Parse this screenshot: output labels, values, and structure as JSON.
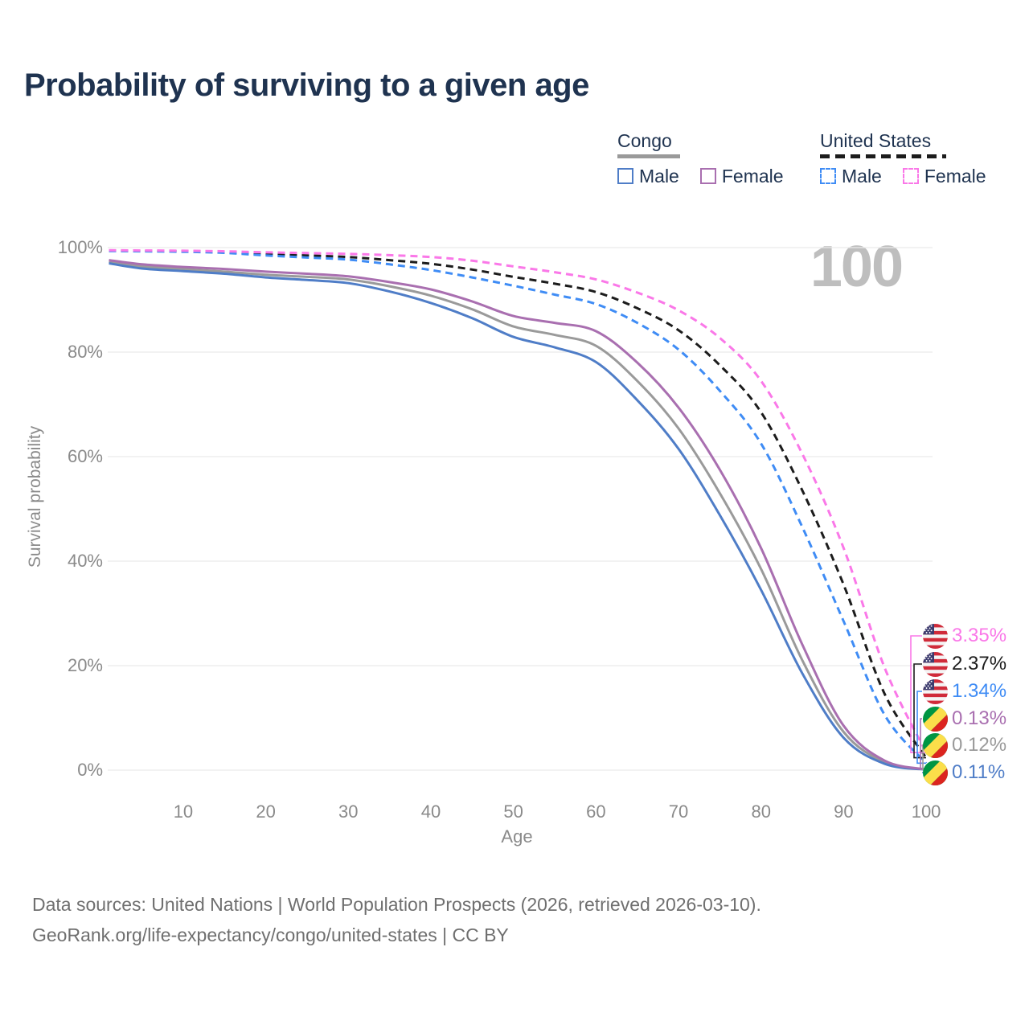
{
  "title": "Probability of surviving to a given age",
  "legend": {
    "congo": {
      "label": "Congo",
      "male": "Male",
      "female": "Female"
    },
    "us": {
      "label": "United States",
      "male": "Male",
      "female": "Female"
    }
  },
  "colors": {
    "congo_male": "#4F7DC7",
    "congo_female": "#A96FB0",
    "congo_overall": "#9A9A9A",
    "us_male": "#3F8CF5",
    "us_female": "#FA78E8",
    "us_overall": "#1C1C1C",
    "title_text": "#1F3350",
    "axis_text": "#8A8A8A",
    "gridline": "#EBEBEB",
    "watermark": "#BEBEBE",
    "footer_text": "#6F6F6F"
  },
  "icons": [
    "us-flag-icon",
    "congo-flag-icon"
  ],
  "end_labels": [
    {
      "flag": "us-flag",
      "series": "United States Female",
      "text": "3.35%",
      "value_pct": 3.35,
      "color": "#FA78E8"
    },
    {
      "flag": "us-flag",
      "series": "United States (both sexes)",
      "text": "2.37%",
      "value_pct": 2.37,
      "color": "#1C1C1C"
    },
    {
      "flag": "us-flag",
      "series": "United States Male",
      "text": "1.34%",
      "value_pct": 1.34,
      "color": "#3F8CF5"
    },
    {
      "flag": "congo-flag",
      "series": "Congo Female",
      "text": "0.13%",
      "value_pct": 0.13,
      "color": "#A96FB0"
    },
    {
      "flag": "congo-flag",
      "series": "Congo (both sexes)",
      "text": "0.12%",
      "value_pct": 0.12,
      "color": "#9A9A9A"
    },
    {
      "flag": "congo-flag",
      "series": "Congo Male",
      "text": "0.11%",
      "value_pct": 0.11,
      "color": "#4F7DC7"
    }
  ],
  "footer": {
    "line1": "Data sources: United Nations | World Population Prospects (2026, retrieved 2026-03-10).",
    "line2": "GeoRank.org/life-expectancy/congo/united-states | CC BY"
  },
  "chart_data": {
    "type": "line",
    "title": "Probability of surviving to a given age",
    "xlabel": "Age",
    "ylabel": "Survival probability",
    "highlighted_age": "100",
    "x_range": [
      1,
      100
    ],
    "y_range_pct": [
      0,
      100
    ],
    "grid": "horizontal-only",
    "legend_position": "top-right",
    "x_ticks": [
      10,
      20,
      30,
      40,
      50,
      60,
      70,
      80,
      90,
      100
    ],
    "y_ticks": [
      0,
      20,
      40,
      60,
      80,
      100
    ],
    "y_tick_labels": [
      "0%",
      "20%",
      "40%",
      "60%",
      "80%",
      "100%"
    ],
    "x": [
      1,
      5,
      10,
      15,
      20,
      25,
      30,
      35,
      40,
      45,
      50,
      55,
      60,
      65,
      70,
      75,
      80,
      85,
      90,
      95,
      100
    ],
    "series": [
      {
        "id": "congo-overall",
        "name": "Congo (both sexes)",
        "country": "Congo",
        "sex": "Both",
        "style": "solid",
        "color": "#9A9A9A",
        "value_at_age_100_pct": 0.12,
        "values": [
          97.3,
          96.4,
          95.9,
          95.4,
          94.8,
          94.4,
          93.9,
          92.6,
          90.8,
          88.2,
          84.9,
          83.3,
          81.2,
          74.5,
          65.4,
          53.0,
          38.5,
          21.0,
          7.3,
          1.5,
          0.12
        ]
      },
      {
        "id": "congo-male",
        "name": "Congo Male",
        "country": "Congo",
        "sex": "Male",
        "style": "solid",
        "color": "#4F7DC7",
        "value_at_age_100_pct": 0.11,
        "values": [
          97.0,
          96.0,
          95.5,
          95.0,
          94.3,
          93.8,
          93.2,
          91.6,
          89.4,
          86.5,
          82.9,
          80.9,
          78.1,
          70.8,
          61.5,
          48.8,
          34.5,
          18.5,
          6.2,
          1.2,
          0.11
        ]
      },
      {
        "id": "congo-female",
        "name": "Congo Female",
        "country": "Congo",
        "sex": "Female",
        "style": "solid",
        "color": "#A96FB0",
        "value_at_age_100_pct": 0.13,
        "values": [
          97.6,
          96.8,
          96.3,
          95.9,
          95.4,
          95.0,
          94.5,
          93.4,
          92.0,
          89.7,
          86.9,
          85.6,
          84.0,
          78.0,
          69.4,
          57.5,
          42.5,
          24.0,
          8.5,
          1.8,
          0.13
        ]
      },
      {
        "id": "us-overall",
        "name": "United States (both sexes)",
        "country": "United States",
        "sex": "Both",
        "style": "dashed",
        "color": "#1C1C1C",
        "value_at_age_100_pct": 2.37,
        "values": [
          99.4,
          99.35,
          99.3,
          99.15,
          98.8,
          98.5,
          98.2,
          97.6,
          96.9,
          95.8,
          94.4,
          93.1,
          91.5,
          88.4,
          84.2,
          77.5,
          68.5,
          53.5,
          35.5,
          14.5,
          2.37
        ]
      },
      {
        "id": "us-male",
        "name": "United States Male",
        "country": "United States",
        "sex": "Male",
        "style": "dashed",
        "color": "#3F8CF5",
        "value_at_age_100_pct": 1.34,
        "values": [
          99.35,
          99.3,
          99.2,
          99.0,
          98.5,
          98.1,
          97.7,
          96.8,
          95.7,
          94.3,
          92.7,
          91.0,
          89.2,
          85.6,
          80.5,
          72.6,
          62.5,
          46.5,
          28.5,
          10.5,
          1.34
        ]
      },
      {
        "id": "us-female",
        "name": "United States Female",
        "country": "United States",
        "sex": "Female",
        "style": "dashed",
        "color": "#FA78E8",
        "value_at_age_100_pct": 3.35,
        "values": [
          99.5,
          99.45,
          99.4,
          99.3,
          99.1,
          98.95,
          98.8,
          98.55,
          98.2,
          97.5,
          96.4,
          95.3,
          93.9,
          91.4,
          88.0,
          82.7,
          74.5,
          60.5,
          42.5,
          19.5,
          3.35
        ]
      }
    ]
  }
}
